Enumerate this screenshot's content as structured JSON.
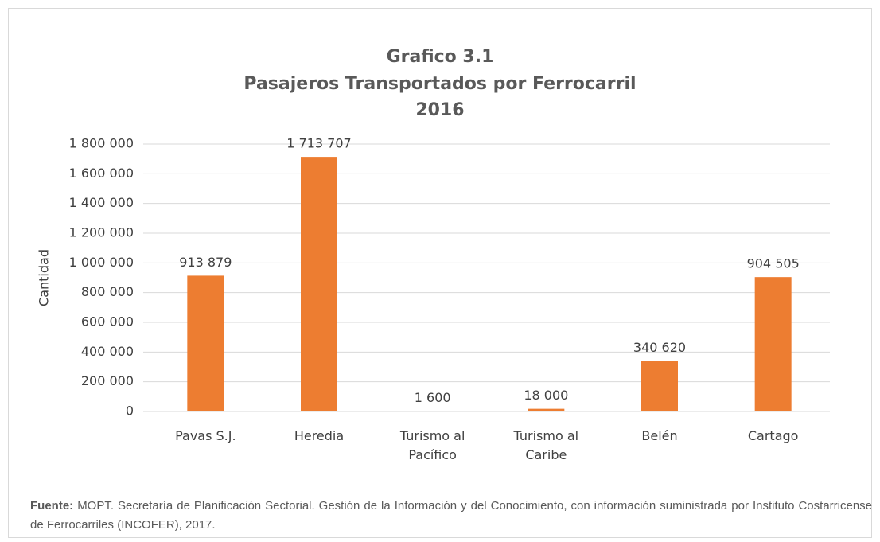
{
  "chart_data": {
    "type": "bar",
    "title": [
      "Grafico 3.1",
      "Pasajeros Transportados por Ferrocarril",
      "2016"
    ],
    "y_label": "Cantidad",
    "categories": [
      "Pavas S.J.",
      "Heredia",
      "Turismo al Pacífico",
      "Turismo al Caribe",
      "Belén",
      "Cartago"
    ],
    "values": [
      913879,
      1713707,
      1600,
      18000,
      340620,
      904505
    ],
    "value_labels": [
      "913 879",
      "1 713 707",
      "1 600",
      "18 000",
      "340 620",
      "904 505"
    ],
    "color": "#ed7d31",
    "ylim": [
      0,
      1800000
    ],
    "yticks": [
      0,
      {
        "value": 200000,
        "label": "200 000"
      },
      {
        "value": 400000,
        "label": "400 000"
      },
      {
        "value": 600000,
        "label": "600 000"
      },
      {
        "value": 800000,
        "label": "800 000"
      },
      {
        "value": 1000000,
        "label": "1 000 000"
      },
      {
        "value": 1200000,
        "label": "1 200 000"
      },
      {
        "value": 1400000,
        "label": "1 400 000"
      },
      {
        "value": 1600000,
        "label": "1 600 000"
      },
      {
        "value": 1800000,
        "label": "1 800 000"
      }
    ],
    "grid": true,
    "note_label": "Fuente:",
    "note": "MOPT. Secretaría de Planificación Sectorial. Gestión de la Información y del Conocimiento, con información suministrada por Instituto Costarricense de Ferrocarriles (INCOFER),  2017."
  }
}
